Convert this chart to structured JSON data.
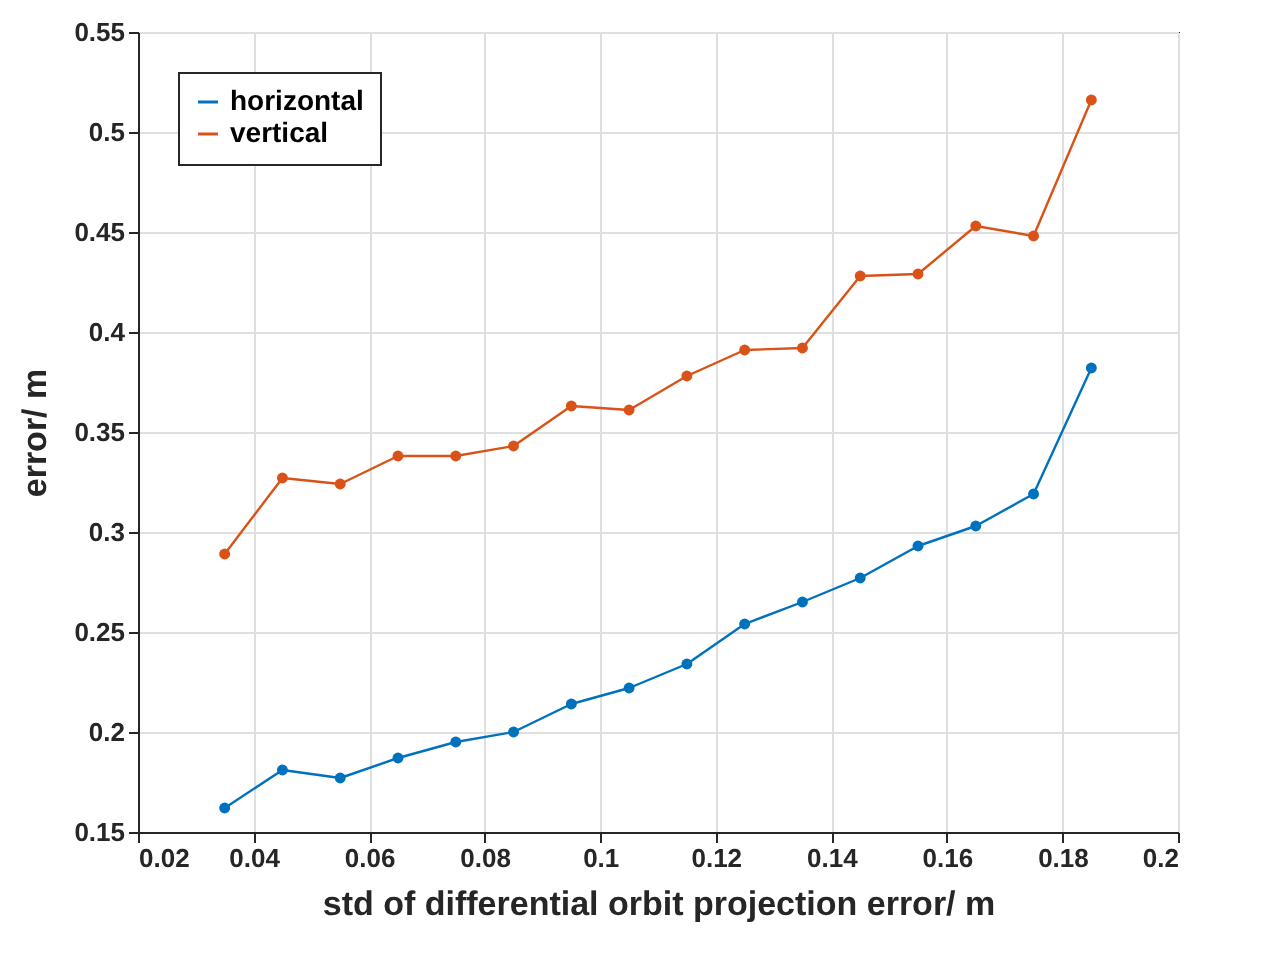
{
  "chart_data": {
    "type": "line",
    "xlabel": "std of differential orbit projection error/ m",
    "ylabel": "error/ m",
    "x": [
      0.035,
      0.045,
      0.055,
      0.065,
      0.075,
      0.085,
      0.095,
      0.105,
      0.115,
      0.125,
      0.135,
      0.145,
      0.155,
      0.165,
      0.175,
      0.185
    ],
    "series": [
      {
        "name": "horizontal",
        "color": "#0072bd",
        "values": [
          0.162,
          0.181,
          0.177,
          0.187,
          0.195,
          0.2,
          0.214,
          0.222,
          0.234,
          0.254,
          0.265,
          0.277,
          0.293,
          0.303,
          0.319,
          0.382
        ]
      },
      {
        "name": "vertical",
        "color": "#d95319",
        "values": [
          0.289,
          0.327,
          0.324,
          0.338,
          0.338,
          0.343,
          0.363,
          0.361,
          0.378,
          0.391,
          0.392,
          0.428,
          0.429,
          0.453,
          0.448,
          0.516
        ]
      }
    ],
    "xlim": [
      0.02,
      0.2
    ],
    "xticks": [
      0.02,
      0.04,
      0.06,
      0.08,
      0.1,
      0.12,
      0.14,
      0.16,
      0.18,
      0.2
    ],
    "ylim": [
      0.15,
      0.55
    ],
    "yticks": [
      0.15,
      0.2,
      0.25,
      0.3,
      0.35,
      0.4,
      0.45,
      0.5,
      0.55
    ],
    "grid": true,
    "legend": "top left",
    "marker": "circle",
    "line_style": "solid"
  }
}
